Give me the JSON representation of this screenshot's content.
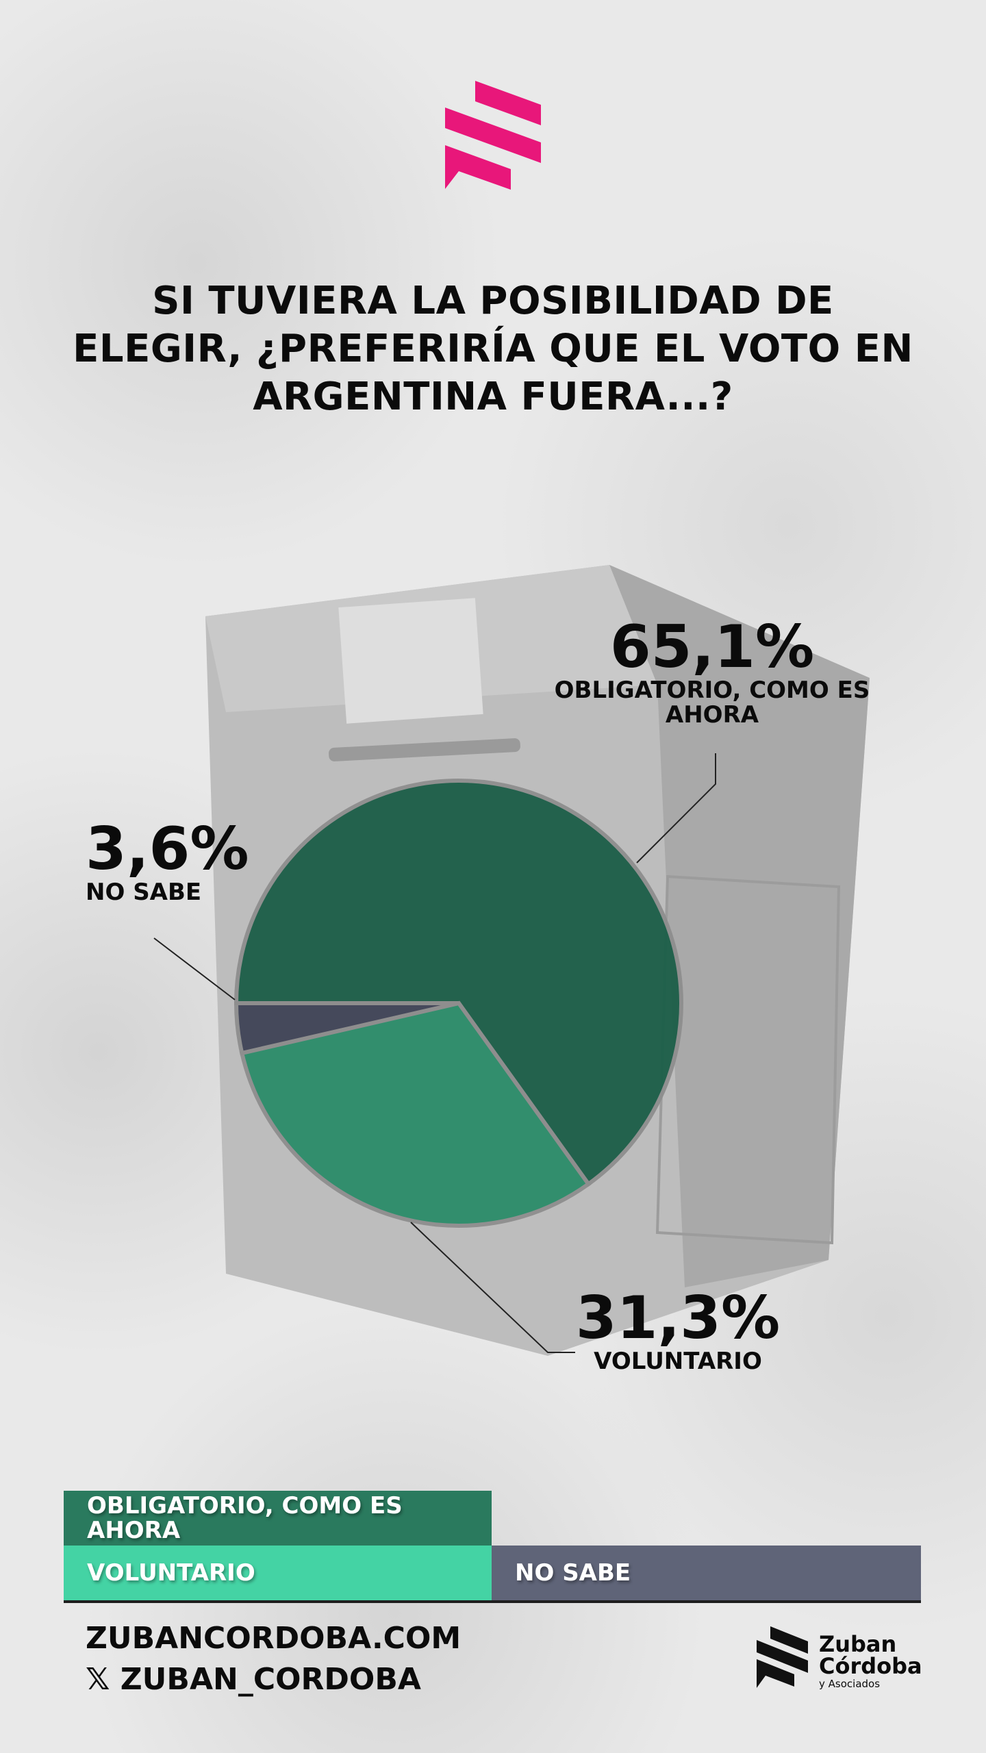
{
  "header": {
    "title": "SI TUVIERA LA POSIBILIDAD DE ELEGIR, ¿PREFERIRÍA QUE EL VOTO EN ARGENTINA FUERA...?",
    "title_lines": [
      "SI TUVIERA LA POSIBILIDAD DE",
      "ELEGIR, ¿PREFERIRÍA QUE EL VOTO EN",
      "ARGENTINA FUERA...?"
    ]
  },
  "colors": {
    "brand": "#e8177a",
    "obligatorio": "#1b5e48",
    "voluntario": "#2b8c69",
    "no_sabe": "#3f4356",
    "legend_obligatorio": "#2a7a5e",
    "legend_voluntario": "#44d3a4",
    "legend_no_sabe": "#5f6478"
  },
  "chart_data": {
    "type": "pie",
    "title": "SI TUVIERA LA POSIBILIDAD DE ELEGIR, ¿PREFERIRÍA QUE EL VOTO EN ARGENTINA FUERA...?",
    "categories": [
      "OBLIGATORIO, COMO ES AHORA",
      "VOLUNTARIO",
      "NO SABE"
    ],
    "values": [
      65.1,
      31.3,
      3.6
    ],
    "value_labels": [
      "65,1%",
      "31,3%",
      "3,6%"
    ],
    "unit": "%",
    "legend_placement": "bottom"
  },
  "legend": {
    "items": [
      "OBLIGATORIO, COMO ES AHORA",
      "VOLUNTARIO",
      "NO SABE"
    ]
  },
  "footer": {
    "website": "ZUBANCORDOBA.COM",
    "social_icon": "x-icon",
    "social": "ZUBAN_CORDOBA",
    "logo_lines": [
      "Zuban",
      "Córdoba",
      "y Asociados"
    ]
  }
}
